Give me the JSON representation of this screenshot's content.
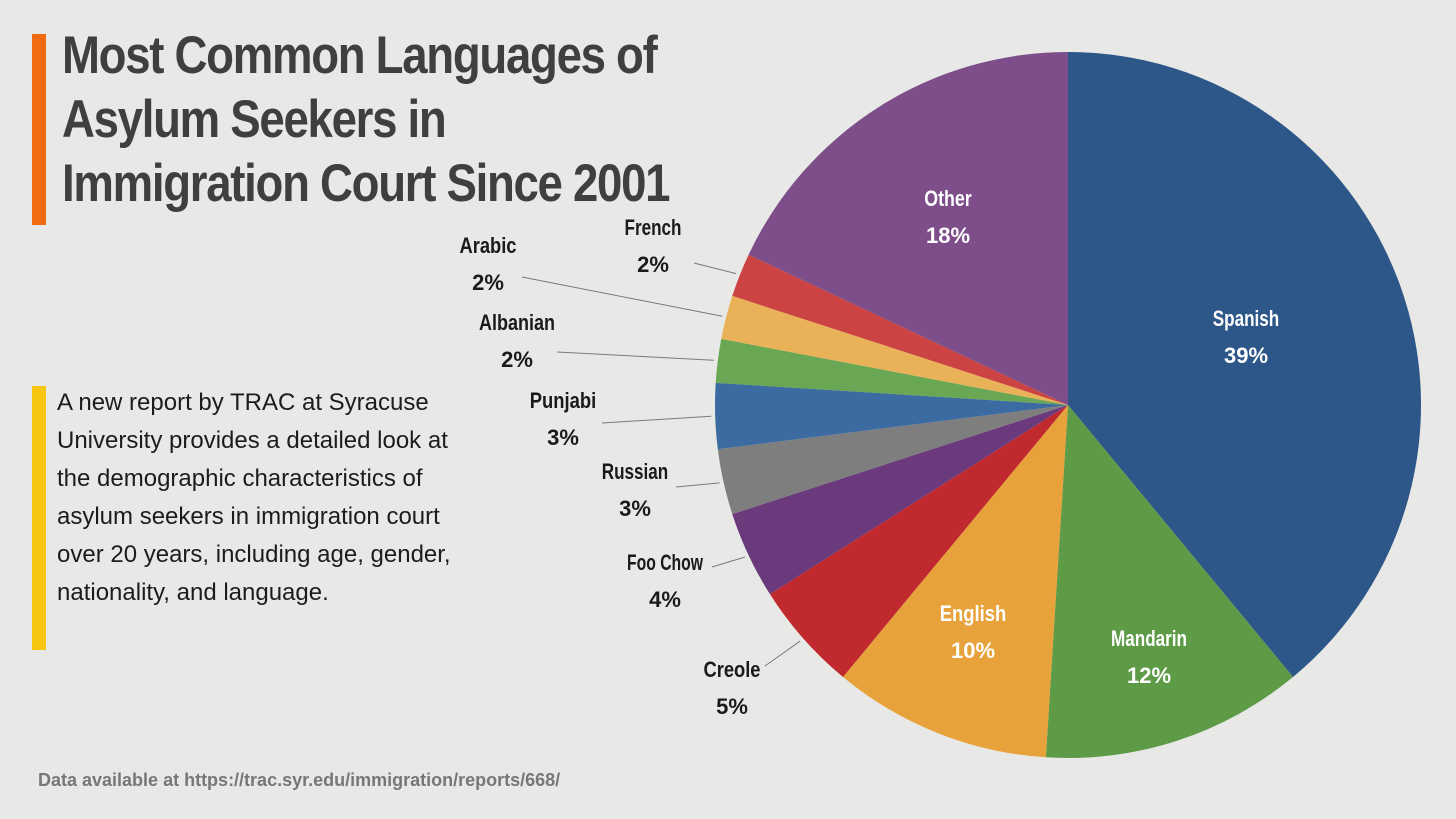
{
  "header": {
    "title": "Most Common Languages of Asylum Seekers in Immigration Court Since 2001"
  },
  "description": "A new report by TRAC at Syracuse University provides a detailed look at the demographic characteristics of asylum seekers in immigration court over 20 years, including age, gender, nationality, and language.",
  "footer": {
    "source": "Data available at https://trac.syr.edu/immigration/reports/668/"
  },
  "colors": {
    "title_accent": "#f26a12",
    "description_accent": "#f7c613",
    "background": "#e8e9e6"
  },
  "chart_data": {
    "type": "pie",
    "title": "Most Common Languages of Asylum Seekers in Immigration Court Since 2001",
    "start": "12 o'clock",
    "direction": "clockwise",
    "slices": [
      {
        "label": "Spanish",
        "value": 39,
        "display": "39%",
        "color": "#2d5689",
        "label_position": "inside"
      },
      {
        "label": "Mandarin",
        "value": 12,
        "display": "12%",
        "color": "#5e9b47",
        "label_position": "inside"
      },
      {
        "label": "English",
        "value": 10,
        "display": "10%",
        "color": "#e8a23c",
        "label_position": "inside"
      },
      {
        "label": "Creole",
        "value": 5,
        "display": "5%",
        "color": "#c0292e",
        "label_position": "outside"
      },
      {
        "label": "Foo Chow",
        "value": 4,
        "display": "4%",
        "color": "#6b3a7c",
        "label_position": "outside"
      },
      {
        "label": "Russian",
        "value": 3,
        "display": "3%",
        "color": "#7d7e7d",
        "label_position": "outside"
      },
      {
        "label": "Punjabi",
        "value": 3,
        "display": "3%",
        "color": "#3c6ba1",
        "label_position": "outside"
      },
      {
        "label": "Albanian",
        "value": 2,
        "display": "2%",
        "color": "#6aa754",
        "label_position": "outside"
      },
      {
        "label": "Arabic",
        "value": 2,
        "display": "2%",
        "color": "#eab258",
        "label_position": "outside"
      },
      {
        "label": "French",
        "value": 2,
        "display": "2%",
        "color": "#cb4343",
        "label_position": "outside"
      },
      {
        "label": "Other",
        "value": 18,
        "display": "18%",
        "color": "#7d4e8a",
        "label_position": "inside"
      }
    ]
  }
}
